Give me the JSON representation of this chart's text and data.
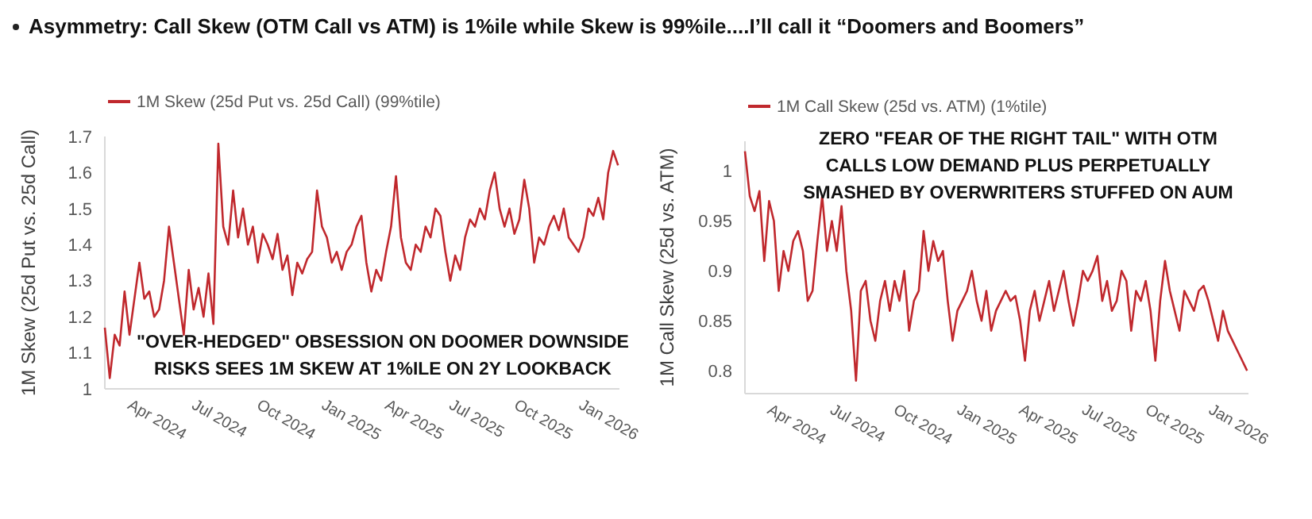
{
  "chart_data": [
    {
      "type": "line",
      "title": "Asymmetry: Call Skew (OTM Call vs ATM) is 1%ile while Skew is 99%ile....I’ll call it “Doomers and Boomers”",
      "ylabel": "1M Skew (25d Put vs. 25d Call)",
      "legend": "top left",
      "grid": false,
      "xlim": [
        "2024-03-01",
        "2026-03-01"
      ],
      "xticks": [
        {
          "value": "2024-04-01",
          "label": "Apr 2024"
        },
        {
          "value": "2024-07-01",
          "label": "Jul 2024"
        },
        {
          "value": "2024-10-01",
          "label": "Oct 2024"
        },
        {
          "value": "2025-01-01",
          "label": "Jan 2025"
        },
        {
          "value": "2025-04-01",
          "label": "Apr 2025"
        },
        {
          "value": "2025-07-01",
          "label": "Jul 2025"
        },
        {
          "value": "2025-10-01",
          "label": "Oct 2025"
        },
        {
          "value": "2026-01-01",
          "label": "Jan 2026"
        }
      ],
      "ylim": [
        1,
        1.7
      ],
      "yticks": [
        1,
        1.1,
        1.2,
        1.3,
        1.4,
        1.5,
        1.6,
        1.7
      ],
      "annotations": [
        "\"OVER-HEDGED\" OBSESSION ON DOOMER DOWNSIDE\nRISKS SEES 1M SKEW AT 1%ILE ON 2Y LOOKBACK"
      ],
      "x": [
        "2024-03-01",
        "2024-03-08",
        "2024-03-15",
        "2024-03-22",
        "2024-03-29",
        "2024-04-05",
        "2024-04-12",
        "2024-04-19",
        "2024-04-26",
        "2024-05-03",
        "2024-05-10",
        "2024-05-17",
        "2024-05-24",
        "2024-05-31",
        "2024-06-07",
        "2024-06-14",
        "2024-06-21",
        "2024-06-28",
        "2024-07-05",
        "2024-07-12",
        "2024-07-19",
        "2024-07-26",
        "2024-08-02",
        "2024-08-09",
        "2024-08-16",
        "2024-08-23",
        "2024-08-30",
        "2024-09-06",
        "2024-09-13",
        "2024-09-20",
        "2024-09-27",
        "2024-10-04",
        "2024-10-11",
        "2024-10-18",
        "2024-10-25",
        "2024-11-01",
        "2024-11-08",
        "2024-11-15",
        "2024-11-22",
        "2024-11-29",
        "2024-12-06",
        "2024-12-13",
        "2024-12-20",
        "2024-12-27",
        "2025-01-03",
        "2025-01-10",
        "2025-01-17",
        "2025-01-24",
        "2025-01-31",
        "2025-02-07",
        "2025-02-14",
        "2025-02-21",
        "2025-02-28",
        "2025-03-07",
        "2025-03-14",
        "2025-03-21",
        "2025-03-28",
        "2025-04-04",
        "2025-04-11",
        "2025-04-18",
        "2025-04-25",
        "2025-05-02",
        "2025-05-09",
        "2025-05-16",
        "2025-05-23",
        "2025-05-30",
        "2025-06-06",
        "2025-06-13",
        "2025-06-20",
        "2025-06-27",
        "2025-07-04",
        "2025-07-11",
        "2025-07-18",
        "2025-07-25",
        "2025-08-01",
        "2025-08-08",
        "2025-08-15",
        "2025-08-22",
        "2025-08-29",
        "2025-09-05",
        "2025-09-12",
        "2025-09-19",
        "2025-09-26",
        "2025-10-03",
        "2025-10-10",
        "2025-10-17",
        "2025-10-24",
        "2025-10-31",
        "2025-11-07",
        "2025-11-14",
        "2025-11-21",
        "2025-11-28",
        "2025-12-05",
        "2025-12-12",
        "2025-12-19",
        "2025-12-26",
        "2026-01-02",
        "2026-01-09",
        "2026-01-16",
        "2026-01-23",
        "2026-01-30",
        "2026-02-06",
        "2026-02-13",
        "2026-02-20",
        "2026-02-27"
      ],
      "series": [
        {
          "name": "1M Skew (25d Put vs. 25d Call) (99%tile)",
          "color": "#c0282d",
          "values": [
            1.17,
            1.03,
            1.15,
            1.12,
            1.27,
            1.15,
            1.25,
            1.35,
            1.25,
            1.27,
            1.2,
            1.22,
            1.3,
            1.45,
            1.35,
            1.25,
            1.15,
            1.33,
            1.22,
            1.28,
            1.2,
            1.32,
            1.18,
            1.68,
            1.45,
            1.4,
            1.55,
            1.42,
            1.5,
            1.4,
            1.45,
            1.35,
            1.43,
            1.4,
            1.36,
            1.43,
            1.33,
            1.37,
            1.26,
            1.35,
            1.32,
            1.36,
            1.38,
            1.55,
            1.45,
            1.42,
            1.35,
            1.38,
            1.33,
            1.38,
            1.4,
            1.45,
            1.48,
            1.35,
            1.27,
            1.33,
            1.3,
            1.38,
            1.45,
            1.59,
            1.42,
            1.35,
            1.33,
            1.4,
            1.38,
            1.45,
            1.42,
            1.5,
            1.48,
            1.38,
            1.3,
            1.37,
            1.33,
            1.42,
            1.47,
            1.45,
            1.5,
            1.47,
            1.55,
            1.6,
            1.5,
            1.45,
            1.5,
            1.43,
            1.47,
            1.58,
            1.5,
            1.35,
            1.42,
            1.4,
            1.45,
            1.48,
            1.44,
            1.5,
            1.42,
            1.4,
            1.38,
            1.42,
            1.5,
            1.48,
            1.53,
            1.47,
            1.6,
            1.66,
            1.62
          ]
        }
      ]
    },
    {
      "type": "line",
      "ylabel": "1M Call Skew (25d vs. ATM)",
      "legend": "top left",
      "grid": false,
      "xlim": [
        "2024-03-01",
        "2026-03-01"
      ],
      "xticks": [
        {
          "value": "2024-04-01",
          "label": "Apr 2024"
        },
        {
          "value": "2024-07-01",
          "label": "Jul 2024"
        },
        {
          "value": "2024-10-01",
          "label": "Oct 2024"
        },
        {
          "value": "2025-01-01",
          "label": "Jan 2025"
        },
        {
          "value": "2025-04-01",
          "label": "Apr 2025"
        },
        {
          "value": "2025-07-01",
          "label": "Jul 2025"
        },
        {
          "value": "2025-10-01",
          "label": "Oct 2025"
        },
        {
          "value": "2026-01-01",
          "label": "Jan 2026"
        }
      ],
      "ylim": [
        0.777,
        1.03
      ],
      "yticks": [
        0.8,
        0.85,
        0.9,
        0.95,
        1
      ],
      "annotations": [
        "ZERO \"FEAR OF THE RIGHT TAIL\" WITH OTM\nCALLS LOW DEMAND PLUS PERPETUALLY\nSMASHED BY OVERWRITERS STUFFED ON AUM"
      ],
      "x": [
        "2024-03-01",
        "2024-03-08",
        "2024-03-15",
        "2024-03-22",
        "2024-03-29",
        "2024-04-05",
        "2024-04-12",
        "2024-04-19",
        "2024-04-26",
        "2024-05-03",
        "2024-05-10",
        "2024-05-17",
        "2024-05-24",
        "2024-05-31",
        "2024-06-07",
        "2024-06-14",
        "2024-06-21",
        "2024-06-28",
        "2024-07-05",
        "2024-07-12",
        "2024-07-19",
        "2024-07-26",
        "2024-08-02",
        "2024-08-09",
        "2024-08-16",
        "2024-08-23",
        "2024-08-30",
        "2024-09-06",
        "2024-09-13",
        "2024-09-20",
        "2024-09-27",
        "2024-10-04",
        "2024-10-11",
        "2024-10-18",
        "2024-10-25",
        "2024-11-01",
        "2024-11-08",
        "2024-11-15",
        "2024-11-22",
        "2024-11-29",
        "2024-12-06",
        "2024-12-13",
        "2024-12-20",
        "2024-12-27",
        "2025-01-03",
        "2025-01-10",
        "2025-01-17",
        "2025-01-24",
        "2025-01-31",
        "2025-02-07",
        "2025-02-14",
        "2025-02-21",
        "2025-02-28",
        "2025-03-07",
        "2025-03-14",
        "2025-03-21",
        "2025-03-28",
        "2025-04-04",
        "2025-04-11",
        "2025-04-18",
        "2025-04-25",
        "2025-05-02",
        "2025-05-09",
        "2025-05-16",
        "2025-05-23",
        "2025-05-30",
        "2025-06-06",
        "2025-06-13",
        "2025-06-20",
        "2025-06-27",
        "2025-07-04",
        "2025-07-11",
        "2025-07-18",
        "2025-07-25",
        "2025-08-01",
        "2025-08-08",
        "2025-08-15",
        "2025-08-22",
        "2025-08-29",
        "2025-09-05",
        "2025-09-12",
        "2025-09-19",
        "2025-09-26",
        "2025-10-03",
        "2025-10-10",
        "2025-10-17",
        "2025-10-24",
        "2025-10-31",
        "2025-11-07",
        "2025-11-14",
        "2025-11-21",
        "2025-11-28",
        "2025-12-05",
        "2025-12-12",
        "2025-12-19",
        "2025-12-26",
        "2026-01-02",
        "2026-01-09",
        "2026-01-16",
        "2026-01-23",
        "2026-01-30",
        "2026-02-06",
        "2026-02-13",
        "2026-02-20",
        "2026-02-27"
      ],
      "series": [
        {
          "name": "1M Call Skew (25d vs. ATM) (1%tile)",
          "color": "#c0282d",
          "values": [
            1.02,
            0.975,
            0.96,
            0.98,
            0.91,
            0.97,
            0.95,
            0.88,
            0.92,
            0.9,
            0.93,
            0.94,
            0.92,
            0.87,
            0.88,
            0.93,
            0.975,
            0.92,
            0.95,
            0.92,
            0.965,
            0.9,
            0.86,
            0.79,
            0.88,
            0.89,
            0.85,
            0.83,
            0.87,
            0.89,
            0.86,
            0.89,
            0.87,
            0.9,
            0.84,
            0.87,
            0.88,
            0.94,
            0.9,
            0.93,
            0.91,
            0.92,
            0.87,
            0.83,
            0.86,
            0.87,
            0.88,
            0.9,
            0.87,
            0.85,
            0.88,
            0.84,
            0.86,
            0.87,
            0.88,
            0.87,
            0.875,
            0.85,
            0.81,
            0.86,
            0.88,
            0.85,
            0.87,
            0.89,
            0.86,
            0.88,
            0.9,
            0.87,
            0.845,
            0.87,
            0.9,
            0.89,
            0.9,
            0.915,
            0.87,
            0.89,
            0.86,
            0.87,
            0.9,
            0.89,
            0.84,
            0.88,
            0.87,
            0.89,
            0.86,
            0.81,
            0.87,
            0.91,
            0.88,
            0.86,
            0.84,
            0.88,
            0.87,
            0.86,
            0.88,
            0.885,
            0.87,
            0.85,
            0.83,
            0.86,
            0.84,
            0.83,
            0.82,
            0.81,
            0.8
          ]
        }
      ]
    }
  ]
}
